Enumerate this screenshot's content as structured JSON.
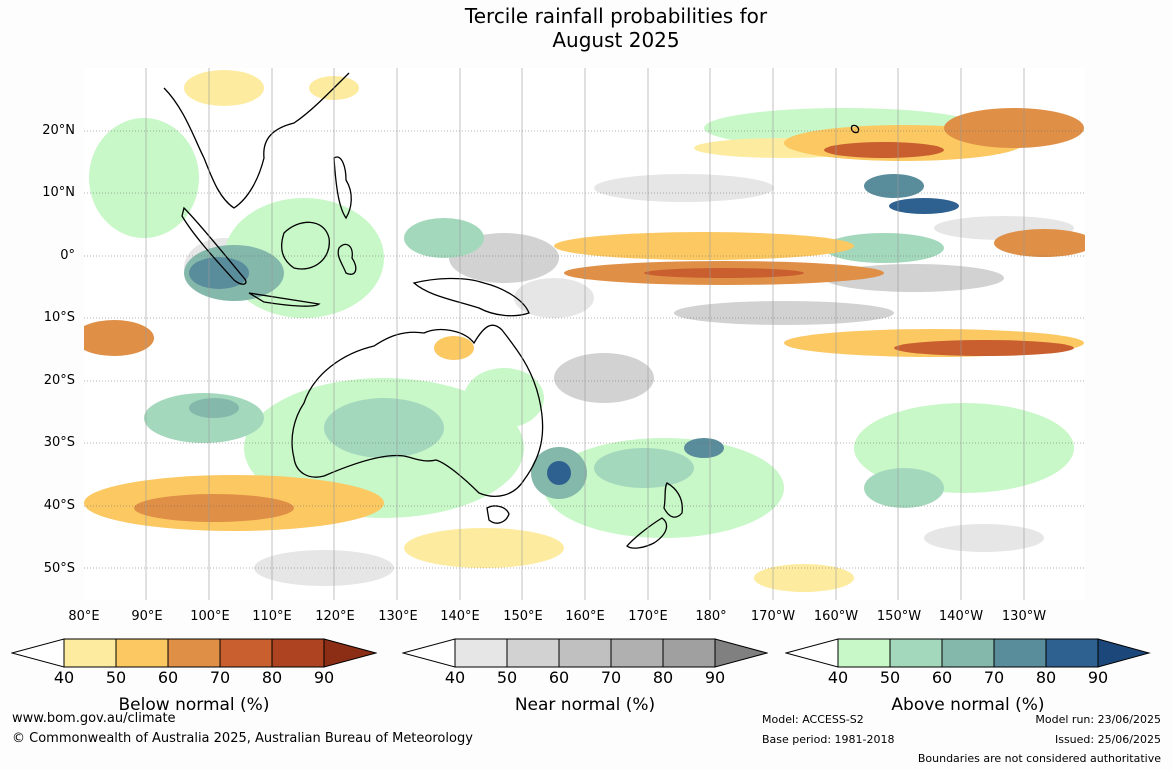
{
  "title": [
    "Tercile rainfall probabilities for",
    "August 2025"
  ],
  "map": {
    "lat_labels": [
      "20°N",
      "10°N",
      "0°",
      "10°S",
      "20°S",
      "30°S",
      "40°S",
      "50°S"
    ],
    "lon_labels": [
      "80°E",
      "90°E",
      "100°E",
      "110°E",
      "120°E",
      "130°E",
      "140°E",
      "150°E",
      "160°E",
      "170°E",
      "180°",
      "170°W",
      "160°W",
      "150°W",
      "140°W",
      "130°W"
    ]
  },
  "legends": [
    {
      "title": "Below normal (%)",
      "ticks": [
        "40",
        "50",
        "60",
        "70",
        "80",
        "90"
      ],
      "colors": [
        "#ffffff",
        "#fdeca0",
        "#fbc862",
        "#df8f46",
        "#c95f2f",
        "#ad4320",
        "#8c2e16"
      ]
    },
    {
      "title": "Near normal (%)",
      "ticks": [
        "40",
        "50",
        "60",
        "70",
        "80",
        "90"
      ],
      "colors": [
        "#ffffff",
        "#e6e6e6",
        "#d2d2d2",
        "#c0c0c0",
        "#b0b0b0",
        "#a0a0a0",
        "#808080"
      ]
    },
    {
      "title": "Above normal (%)",
      "ticks": [
        "40",
        "50",
        "60",
        "70",
        "80",
        "90"
      ],
      "colors": [
        "#ffffff",
        "#c8f7c8",
        "#a4d8bc",
        "#84b8ab",
        "#5a8d9c",
        "#2f6190",
        "#1c477a"
      ]
    }
  ],
  "footer": {
    "website": "www.bom.gov.au/climate",
    "copyright": "© Commonwealth of Australia 2025, Australian Bureau of Meteorology",
    "model": "Model: ACCESS-S2",
    "base_period": "Base period: 1981-2018",
    "model_run": "Model run: 23/06/2025",
    "issued": "Issued: 25/06/2025",
    "disclaimer": "Boundaries are not considered authoritative"
  }
}
